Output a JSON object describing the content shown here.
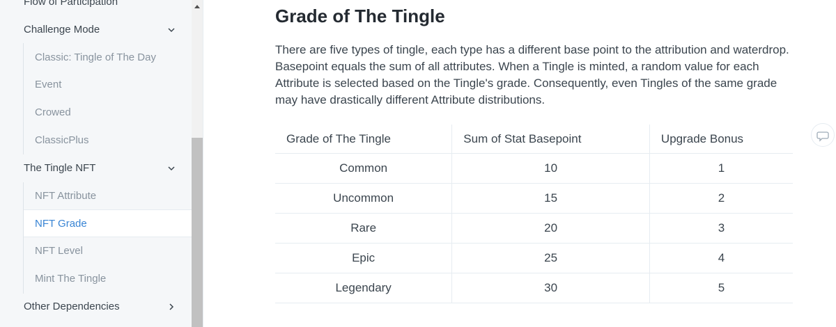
{
  "sidebar": {
    "items": [
      {
        "label": "Flow of Participation",
        "level": 0
      },
      {
        "label": "Challenge Mode",
        "level": 0,
        "chevron": "down"
      },
      {
        "label": "Classic: Tingle of The Day",
        "level": 1
      },
      {
        "label": "Event",
        "level": 1
      },
      {
        "label": "Crowed",
        "level": 1
      },
      {
        "label": "ClassicPlus",
        "level": 1
      },
      {
        "label": "The Tingle NFT",
        "level": 0,
        "chevron": "down"
      },
      {
        "label": "NFT Attribute",
        "level": 1
      },
      {
        "label": "NFT Grade",
        "level": 1,
        "active": true
      },
      {
        "label": "NFT Level",
        "level": 1
      },
      {
        "label": "Mint The Tingle",
        "level": 1
      },
      {
        "label": "Other Dependencies",
        "level": 0,
        "chevron": "right"
      }
    ]
  },
  "content": {
    "title": "Grade of The Tingle",
    "paragraph": "There are five types of tingle, each type has a different base point to the attribution and waterdrop. Basepoint equals the sum of all attributes. When a Tingle is minted, a random value for each Attribute is selected based on the Tingle's grade. Consequently, even Tingles of the same grade may have drastically different Attribute distributions."
  },
  "table": {
    "header": [
      "Grade of The Tingle",
      "Sum of Stat Basepoint",
      "Upgrade Bonus"
    ],
    "rows": [
      [
        "Common",
        10,
        1
      ],
      [
        "Uncommon",
        15,
        2
      ],
      [
        "Rare",
        20,
        3
      ],
      [
        "Epic",
        25,
        4
      ],
      [
        "Legendary",
        30,
        5
      ]
    ]
  }
}
